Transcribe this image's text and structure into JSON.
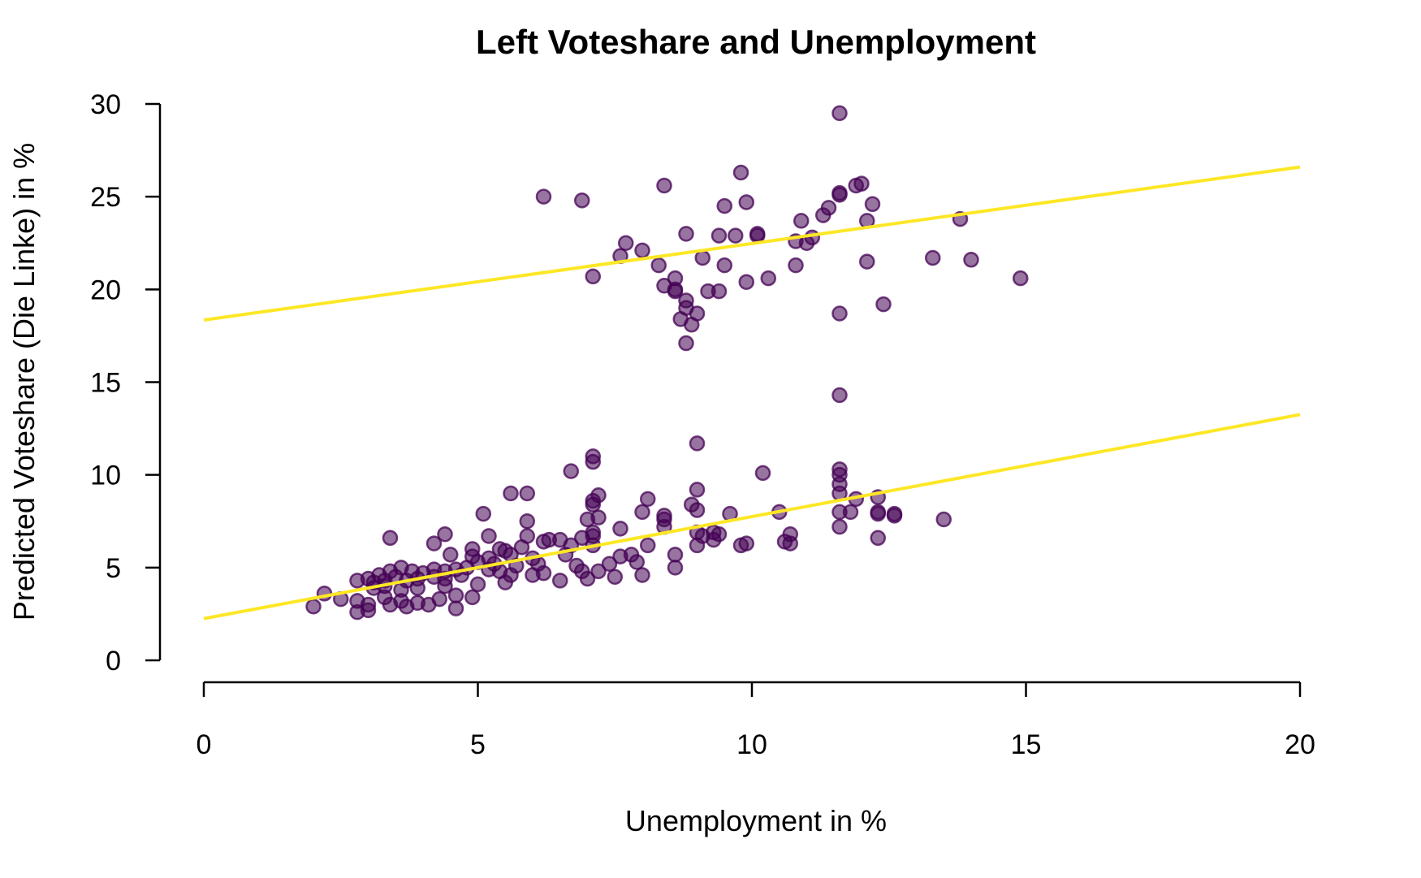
{
  "chart_data": {
    "type": "scatter",
    "title": "Left Voteshare and Unemployment",
    "xlabel": "Unemployment in %",
    "ylabel": "Predicted Voteshare (Die Linke) in %",
    "xlim": [
      0,
      20
    ],
    "ylim": [
      0,
      30
    ],
    "xticks": [
      0,
      5,
      10,
      15,
      20
    ],
    "yticks": [
      0,
      5,
      10,
      15,
      20,
      25,
      30
    ],
    "grid": false,
    "legend": "none",
    "point_color": "#440154",
    "point_opacity": 0.55,
    "line_color": "#FDE725",
    "fit_lines": [
      {
        "x": [
          0,
          20
        ],
        "y": [
          18.35,
          26.6
        ]
      },
      {
        "x": [
          0,
          20
        ],
        "y": [
          2.25,
          13.25
        ]
      }
    ],
    "points": [
      [
        11.6,
        29.5
      ],
      [
        9.8,
        26.3
      ],
      [
        6.2,
        25.0
      ],
      [
        6.9,
        24.8
      ],
      [
        8.4,
        25.6
      ],
      [
        11.6,
        25.1
      ],
      [
        11.6,
        25.2
      ],
      [
        11.9,
        25.6
      ],
      [
        12.0,
        25.7
      ],
      [
        12.2,
        24.6
      ],
      [
        9.5,
        24.5
      ],
      [
        9.9,
        24.7
      ],
      [
        11.3,
        24.0
      ],
      [
        11.4,
        24.4
      ],
      [
        10.9,
        23.7
      ],
      [
        12.1,
        23.7
      ],
      [
        13.8,
        23.8
      ],
      [
        8.8,
        23.0
      ],
      [
        9.4,
        22.9
      ],
      [
        9.7,
        22.9
      ],
      [
        10.1,
        23.0
      ],
      [
        10.1,
        22.9
      ],
      [
        7.7,
        22.5
      ],
      [
        8.0,
        22.1
      ],
      [
        7.6,
        21.8
      ],
      [
        9.1,
        21.7
      ],
      [
        10.8,
        22.6
      ],
      [
        11.0,
        22.5
      ],
      [
        11.1,
        22.8
      ],
      [
        13.3,
        21.7
      ],
      [
        14.0,
        21.6
      ],
      [
        12.1,
        21.5
      ],
      [
        8.3,
        21.3
      ],
      [
        9.5,
        21.3
      ],
      [
        10.8,
        21.3
      ],
      [
        7.1,
        20.7
      ],
      [
        8.6,
        20.6
      ],
      [
        10.3,
        20.6
      ],
      [
        14.9,
        20.6
      ],
      [
        8.4,
        20.2
      ],
      [
        8.6,
        20.0
      ],
      [
        8.6,
        19.9
      ],
      [
        9.2,
        19.9
      ],
      [
        9.4,
        19.9
      ],
      [
        9.9,
        20.4
      ],
      [
        8.8,
        19.4
      ],
      [
        8.8,
        19.0
      ],
      [
        9.0,
        18.7
      ],
      [
        8.7,
        18.4
      ],
      [
        8.9,
        18.1
      ],
      [
        11.6,
        18.7
      ],
      [
        12.4,
        19.2
      ],
      [
        8.8,
        17.1
      ],
      [
        11.6,
        14.3
      ],
      [
        7.1,
        11.0
      ],
      [
        7.1,
        10.7
      ],
      [
        9.0,
        11.7
      ],
      [
        6.7,
        10.2
      ],
      [
        10.2,
        10.1
      ],
      [
        11.6,
        10.3
      ],
      [
        11.6,
        10.0
      ],
      [
        11.6,
        9.5
      ],
      [
        11.6,
        9.0
      ],
      [
        9.0,
        9.2
      ],
      [
        5.6,
        9.0
      ],
      [
        5.9,
        9.0
      ],
      [
        7.1,
        8.6
      ],
      [
        7.1,
        8.4
      ],
      [
        7.2,
        8.9
      ],
      [
        8.1,
        8.7
      ],
      [
        8.9,
        8.4
      ],
      [
        9.0,
        8.1
      ],
      [
        11.9,
        8.7
      ],
      [
        12.3,
        8.8
      ],
      [
        12.3,
        8.0
      ],
      [
        12.3,
        7.9
      ],
      [
        12.6,
        7.9
      ],
      [
        12.6,
        7.8
      ],
      [
        13.5,
        7.6
      ],
      [
        11.6,
        8.0
      ],
      [
        11.8,
        8.0
      ],
      [
        11.6,
        7.2
      ],
      [
        10.5,
        8.0
      ],
      [
        9.6,
        7.9
      ],
      [
        5.1,
        7.9
      ],
      [
        5.9,
        7.5
      ],
      [
        7.0,
        7.6
      ],
      [
        7.2,
        7.7
      ],
      [
        8.0,
        8.0
      ],
      [
        8.4,
        7.8
      ],
      [
        8.4,
        7.6
      ],
      [
        8.4,
        7.2
      ],
      [
        7.6,
        7.1
      ],
      [
        7.1,
        6.9
      ],
      [
        7.1,
        6.7
      ],
      [
        7.1,
        6.2
      ],
      [
        9.3,
        6.9
      ],
      [
        9.4,
        6.8
      ],
      [
        9.1,
        6.7
      ],
      [
        9.0,
        6.9
      ],
      [
        10.7,
        6.8
      ],
      [
        10.6,
        6.4
      ],
      [
        10.7,
        6.3
      ],
      [
        12.3,
        6.6
      ],
      [
        9.3,
        6.5
      ],
      [
        9.0,
        6.2
      ],
      [
        9.8,
        6.2
      ],
      [
        9.9,
        6.3
      ],
      [
        4.4,
        6.8
      ],
      [
        3.4,
        6.6
      ],
      [
        5.2,
        6.7
      ],
      [
        5.9,
        6.7
      ],
      [
        6.2,
        6.4
      ],
      [
        6.3,
        6.5
      ],
      [
        6.5,
        6.5
      ],
      [
        6.9,
        6.6
      ],
      [
        6.7,
        6.2
      ],
      [
        8.1,
        6.2
      ],
      [
        4.2,
        6.3
      ],
      [
        4.9,
        6.0
      ],
      [
        5.4,
        6.0
      ],
      [
        5.5,
        5.9
      ],
      [
        5.8,
        6.1
      ],
      [
        4.5,
        5.7
      ],
      [
        4.9,
        5.6
      ],
      [
        5.2,
        5.5
      ],
      [
        5.6,
        5.7
      ],
      [
        6.0,
        5.5
      ],
      [
        6.6,
        5.7
      ],
      [
        7.6,
        5.6
      ],
      [
        7.8,
        5.7
      ],
      [
        8.6,
        5.7
      ],
      [
        5.0,
        5.3
      ],
      [
        5.3,
        5.2
      ],
      [
        5.7,
        5.1
      ],
      [
        6.1,
        5.2
      ],
      [
        6.8,
        5.1
      ],
      [
        7.4,
        5.2
      ],
      [
        7.9,
        5.3
      ],
      [
        4.8,
        5.0
      ],
      [
        5.2,
        4.9
      ],
      [
        5.4,
        4.8
      ],
      [
        5.6,
        4.6
      ],
      [
        6.2,
        4.7
      ],
      [
        6.9,
        4.8
      ],
      [
        7.2,
        4.8
      ],
      [
        7.5,
        4.5
      ],
      [
        8.0,
        4.6
      ],
      [
        8.6,
        5.0
      ],
      [
        3.2,
        4.6
      ],
      [
        3.4,
        4.8
      ],
      [
        3.6,
        5.0
      ],
      [
        3.8,
        4.8
      ],
      [
        4.0,
        4.7
      ],
      [
        4.2,
        4.9
      ],
      [
        4.4,
        4.8
      ],
      [
        4.6,
        4.9
      ],
      [
        3.0,
        4.4
      ],
      [
        3.1,
        4.2
      ],
      [
        3.3,
        4.3
      ],
      [
        3.5,
        4.5
      ],
      [
        3.7,
        4.3
      ],
      [
        3.9,
        4.4
      ],
      [
        4.2,
        4.5
      ],
      [
        4.4,
        4.4
      ],
      [
        4.7,
        4.6
      ],
      [
        2.8,
        4.3
      ],
      [
        3.1,
        3.9
      ],
      [
        3.3,
        4.0
      ],
      [
        3.6,
        3.8
      ],
      [
        3.9,
        3.9
      ],
      [
        4.4,
        4.0
      ],
      [
        2.2,
        3.6
      ],
      [
        2.5,
        3.3
      ],
      [
        2.8,
        3.2
      ],
      [
        3.0,
        3.0
      ],
      [
        3.3,
        3.4
      ],
      [
        3.6,
        3.2
      ],
      [
        3.9,
        3.1
      ],
      [
        4.3,
        3.3
      ],
      [
        4.6,
        3.5
      ],
      [
        4.9,
        3.4
      ],
      [
        2.0,
        2.9
      ],
      [
        2.8,
        2.6
      ],
      [
        3.0,
        2.7
      ],
      [
        3.4,
        3.0
      ],
      [
        3.7,
        2.9
      ],
      [
        4.1,
        3.0
      ],
      [
        4.6,
        2.8
      ],
      [
        6.5,
        4.3
      ],
      [
        7.0,
        4.4
      ],
      [
        5.5,
        4.2
      ],
      [
        6.0,
        4.6
      ],
      [
        5.0,
        4.1
      ]
    ]
  }
}
